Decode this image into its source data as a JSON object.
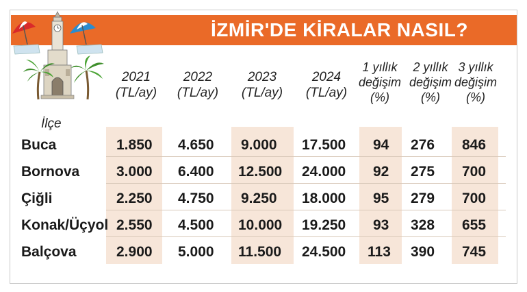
{
  "title": "İZMİR'DE KİRALAR NASIL?",
  "colors": {
    "title_bar": "#ea6a28",
    "stripe": "#f7e6d9"
  },
  "illustration": {
    "icons": [
      "beach-umbrella-icon",
      "clock-tower-icon",
      "palm-tree-icon"
    ]
  },
  "table": {
    "row_header": "İlçe",
    "columns": [
      "2021\n(TL/ay)",
      "2022\n(TL/ay)",
      "2023\n(TL/ay)",
      "2024\n(TL/ay)",
      "1 yıllık\ndeğişim\n(%)",
      "2 yıllık\ndeğişim\n(%)",
      "3 yıllık\ndeğişim\n(%)"
    ],
    "rows": [
      {
        "name": "Buca",
        "values": [
          "1.850",
          "4.650",
          "9.000",
          "17.500",
          "94",
          "276",
          "846"
        ]
      },
      {
        "name": "Bornova",
        "values": [
          "3.000",
          "6.400",
          "12.500",
          "24.000",
          "92",
          "275",
          "700"
        ]
      },
      {
        "name": "Çiğli",
        "values": [
          "2.250",
          "4.750",
          "9.250",
          "18.000",
          "95",
          "279",
          "700"
        ]
      },
      {
        "name": "Konak/Üçyol",
        "values": [
          "2.550",
          "4.500",
          "10.000",
          "19.250",
          "93",
          "328",
          "655"
        ]
      },
      {
        "name": "Balçova",
        "values": [
          "2.900",
          "5.000",
          "11.500",
          "24.500",
          "113",
          "390",
          "745"
        ]
      }
    ]
  }
}
